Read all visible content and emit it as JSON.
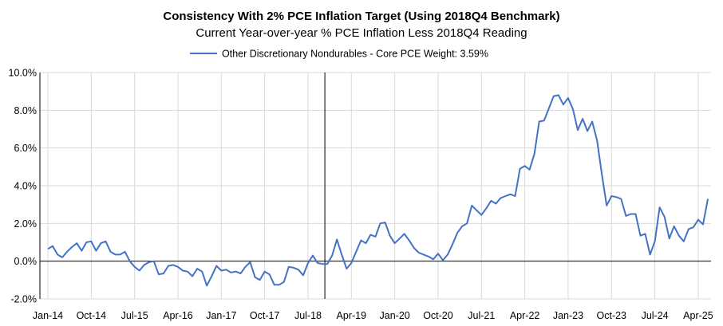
{
  "chart_data": {
    "type": "line",
    "title": "Consistency With 2% PCE Inflation Target (Using 2018Q4 Benchmark)",
    "subtitle": "Current Year-over-year % PCE Inflation Less 2018Q4 Reading",
    "xlabel": "",
    "ylabel": "",
    "ylim": [
      -2,
      10
    ],
    "yticks": [
      "-2.0%",
      "0.0%",
      "2.0%",
      "4.0%",
      "6.0%",
      "8.0%",
      "10.0%"
    ],
    "ytick_values": [
      -2,
      0,
      2,
      4,
      6,
      8,
      10
    ],
    "xticks": [
      "Jan-14",
      "Oct-14",
      "Jul-15",
      "Apr-16",
      "Jan-17",
      "Oct-17",
      "Jul-18",
      "Apr-19",
      "Jan-20",
      "Oct-20",
      "Jul-21",
      "Apr-22",
      "Jan-23",
      "Oct-23",
      "Jul-24",
      "Apr-25"
    ],
    "xtick_month_index": [
      0,
      9,
      18,
      27,
      36,
      45,
      54,
      63,
      72,
      81,
      90,
      99,
      108,
      117,
      126,
      135
    ],
    "benchmark_month_index": 57.5,
    "grid": true,
    "legend_position": "top-center",
    "series": [
      {
        "name": "Other Discretionary Nondurables - Core PCE Weight: 3.59%",
        "color": "#4472C4",
        "start": "Jan-14",
        "values": [
          0.65,
          0.8,
          0.35,
          0.2,
          0.5,
          0.75,
          0.95,
          0.55,
          1.0,
          1.05,
          0.55,
          0.95,
          1.05,
          0.5,
          0.35,
          0.35,
          0.5,
          0.0,
          -0.3,
          -0.5,
          -0.2,
          -0.05,
          0.0,
          -0.7,
          -0.65,
          -0.25,
          -0.2,
          -0.3,
          -0.5,
          -0.55,
          -0.8,
          -0.4,
          -0.55,
          -1.3,
          -0.8,
          -0.25,
          -0.5,
          -0.45,
          -0.6,
          -0.55,
          -0.65,
          -0.3,
          -0.05,
          -0.85,
          -1.0,
          -0.55,
          -0.7,
          -1.25,
          -1.25,
          -1.1,
          -0.3,
          -0.35,
          -0.45,
          -0.75,
          -0.1,
          0.3,
          -0.1,
          -0.15,
          -0.15,
          0.3,
          1.15,
          0.35,
          -0.4,
          -0.1,
          0.5,
          1.1,
          0.95,
          1.4,
          1.3,
          2.0,
          2.05,
          1.35,
          0.95,
          1.2,
          1.45,
          1.1,
          0.7,
          0.45,
          0.35,
          0.25,
          0.1,
          0.4,
          0.05,
          0.35,
          0.9,
          1.5,
          1.85,
          2.0,
          2.95,
          2.7,
          2.45,
          2.8,
          3.2,
          3.05,
          3.35,
          3.45,
          3.55,
          3.45,
          4.9,
          5.05,
          4.85,
          5.7,
          7.4,
          7.45,
          8.1,
          8.75,
          8.8,
          8.3,
          8.65,
          8.05,
          6.95,
          7.55,
          6.9,
          7.4,
          6.4,
          4.6,
          2.95,
          3.45,
          3.4,
          3.3,
          2.4,
          2.5,
          2.5,
          1.35,
          1.45,
          0.35,
          1.05,
          2.85,
          2.35,
          1.2,
          1.85,
          1.35,
          1.05,
          1.7,
          1.8,
          2.2,
          1.95,
          3.3
        ]
      }
    ]
  }
}
